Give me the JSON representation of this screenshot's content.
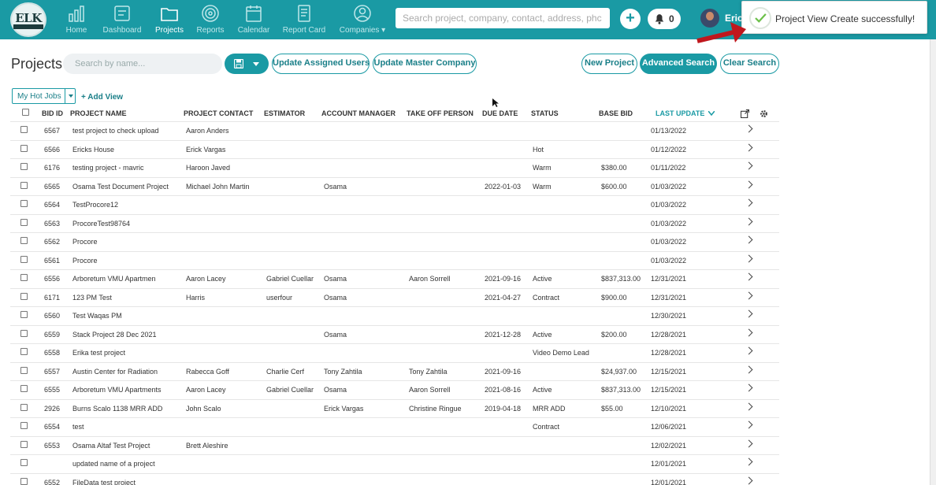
{
  "app": {
    "logo_text": "ELK"
  },
  "nav": [
    {
      "id": "home",
      "label": "Home",
      "icon": "bar-chart-icon"
    },
    {
      "id": "dashboard",
      "label": "Dashboard",
      "icon": "dashboard-icon"
    },
    {
      "id": "projects",
      "label": "Projects",
      "icon": "folder-icon",
      "active": true
    },
    {
      "id": "reports",
      "label": "Reports",
      "icon": "target-icon"
    },
    {
      "id": "calendar",
      "label": "Calendar",
      "icon": "calendar-icon"
    },
    {
      "id": "report-card",
      "label": "Report Card",
      "icon": "document-icon"
    },
    {
      "id": "companies",
      "label": "Companies ▾",
      "icon": "user-circle-icon"
    }
  ],
  "header": {
    "search_placeholder": "Search project, company, contact, address, phc",
    "plus_label": "+",
    "notification_count": "0",
    "user_name": "Eric"
  },
  "toast": {
    "message": "Project View Create successfully!"
  },
  "toolbar": {
    "title": "Projects",
    "search_placeholder": "Search by name...",
    "update_assigned_users": "Update Assigned Users",
    "update_master_company": "Update Master Company",
    "new_project": "New Project",
    "advanced_search": "Advanced Search",
    "clear_search": "Clear Search"
  },
  "views": {
    "selected": "My Hot Jobs",
    "add_view": "+ Add View"
  },
  "table": {
    "columns": {
      "bid_id": "BID ID",
      "project_name": "PROJECT NAME",
      "project_contact": "PROJECT CONTACT",
      "estimator": "ESTIMATOR",
      "account_manager": "ACCOUNT MANAGER",
      "take_off_person": "TAKE OFF PERSON",
      "due_date": "DUE DATE",
      "status": "STATUS",
      "base_bid": "BASE BID",
      "last_update": "LAST UPDATE"
    },
    "rows": [
      {
        "bid": "6567",
        "name": "test project to check upload",
        "contact": "Aaron Anders",
        "estimator": "",
        "am": "",
        "takeoff": "",
        "due": "",
        "status": "",
        "base": "",
        "updated": "01/13/2022"
      },
      {
        "bid": "6566",
        "name": "Ericks House",
        "contact": "Erick Vargas",
        "estimator": "",
        "am": "",
        "takeoff": "",
        "due": "",
        "status": "Hot",
        "base": "",
        "updated": "01/12/2022"
      },
      {
        "bid": "6176",
        "name": "testing project - mavric",
        "contact": "Haroon Javed",
        "estimator": "",
        "am": "",
        "takeoff": "",
        "due": "",
        "status": "Warm",
        "base": "$380.00",
        "updated": "01/11/2022"
      },
      {
        "bid": "6565",
        "name": "Osama Test Document Project",
        "contact": "Michael John Martin",
        "estimator": "",
        "am": "Osama",
        "takeoff": "",
        "due": "2022-01-03",
        "status": "Warm",
        "base": "$600.00",
        "updated": "01/03/2022"
      },
      {
        "bid": "6564",
        "name": "TestProcore12",
        "contact": "",
        "estimator": "",
        "am": "",
        "takeoff": "",
        "due": "",
        "status": "",
        "base": "",
        "updated": "01/03/2022"
      },
      {
        "bid": "6563",
        "name": "ProcoreTest98764",
        "contact": "",
        "estimator": "",
        "am": "",
        "takeoff": "",
        "due": "",
        "status": "",
        "base": "",
        "updated": "01/03/2022"
      },
      {
        "bid": "6562",
        "name": "Procore",
        "contact": "",
        "estimator": "",
        "am": "",
        "takeoff": "",
        "due": "",
        "status": "",
        "base": "",
        "updated": "01/03/2022"
      },
      {
        "bid": "6561",
        "name": "Procore",
        "contact": "",
        "estimator": "",
        "am": "",
        "takeoff": "",
        "due": "",
        "status": "",
        "base": "",
        "updated": "01/03/2022"
      },
      {
        "bid": "6556",
        "name": "Arboretum VMU Apartmen",
        "contact": "Aaron Lacey",
        "estimator": "Gabriel Cuellar",
        "am": "Osama",
        "takeoff": "Aaron Sorrell",
        "due": "2021-09-16",
        "status": "Active",
        "base": "$837,313.00",
        "updated": "12/31/2021"
      },
      {
        "bid": "6171",
        "name": "123 PM Test",
        "contact": "Harris",
        "estimator": "userfour",
        "am": "Osama",
        "takeoff": "",
        "due": "2021-04-27",
        "status": "Contract",
        "base": "$900.00",
        "updated": "12/31/2021"
      },
      {
        "bid": "6560",
        "name": "Test Waqas PM",
        "contact": "",
        "estimator": "",
        "am": "",
        "takeoff": "",
        "due": "",
        "status": "",
        "base": "",
        "updated": "12/30/2021"
      },
      {
        "bid": "6559",
        "name": "Stack Project 28 Dec 2021",
        "contact": "",
        "estimator": "",
        "am": "Osama",
        "takeoff": "",
        "due": "2021-12-28",
        "status": "Active",
        "base": "$200.00",
        "updated": "12/28/2021"
      },
      {
        "bid": "6558",
        "name": "Erika test project",
        "contact": "",
        "estimator": "",
        "am": "",
        "takeoff": "",
        "due": "",
        "status": "Video Demo Lead",
        "base": "",
        "updated": "12/28/2021"
      },
      {
        "bid": "6557",
        "name": "Austin Center for Radiation",
        "contact": "Rabecca Goff",
        "estimator": "Charlie Cerf",
        "am": "Tony Zahtila",
        "takeoff": "Tony Zahtila",
        "due": "2021-09-16",
        "status": "",
        "base": "$24,937.00",
        "updated": "12/15/2021"
      },
      {
        "bid": "6555",
        "name": "Arboretum VMU Apartments",
        "contact": "Aaron Lacey",
        "estimator": "Gabriel Cuellar",
        "am": "Osama",
        "takeoff": "Aaron Sorrell",
        "due": "2021-08-16",
        "status": "Active",
        "base": "$837,313.00",
        "updated": "12/15/2021"
      },
      {
        "bid": "2926",
        "name": "Burns Scalo 1138 MRR ADD",
        "contact": "John Scalo",
        "estimator": "",
        "am": "Erick Vargas",
        "takeoff": "Christine Ringue",
        "due": "2019-04-18",
        "status": "MRR ADD",
        "base": "$55.00",
        "updated": "12/10/2021"
      },
      {
        "bid": "6554",
        "name": "test",
        "contact": "",
        "estimator": "",
        "am": "",
        "takeoff": "",
        "due": "",
        "status": "Contract",
        "base": "",
        "updated": "12/06/2021"
      },
      {
        "bid": "6553",
        "name": "Osama Altaf Test Project",
        "contact": "Brett Aleshire",
        "estimator": "",
        "am": "",
        "takeoff": "",
        "due": "",
        "status": "",
        "base": "",
        "updated": "12/02/2021"
      },
      {
        "bid": "",
        "name": "updated name of a project",
        "contact": "",
        "estimator": "",
        "am": "",
        "takeoff": "",
        "due": "",
        "status": "",
        "base": "",
        "updated": "12/01/2021"
      },
      {
        "bid": "6552",
        "name": "FileData test project",
        "contact": "",
        "estimator": "",
        "am": "",
        "takeoff": "",
        "due": "",
        "status": "",
        "base": "",
        "updated": "12/01/2021"
      }
    ]
  },
  "colors": {
    "accent": "#1a9aa4",
    "toast_success": "#6cc04a",
    "arrow": "#c0171d"
  }
}
